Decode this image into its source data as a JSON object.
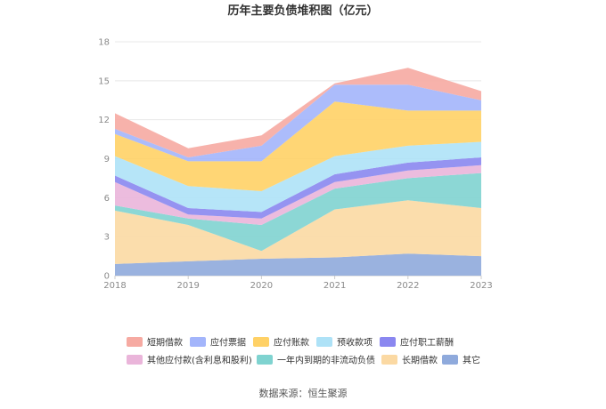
{
  "chart_data": {
    "type": "area",
    "title": "历年主要负债堆积图（亿元）",
    "source": "数据来源：恒生聚源",
    "x": [
      "2018",
      "2019",
      "2020",
      "2021",
      "2022",
      "2023"
    ],
    "ylim": [
      0,
      18
    ],
    "yticks": [
      "0",
      "3",
      "6",
      "9",
      "12",
      "15",
      "18"
    ],
    "grid": true,
    "stacked": true,
    "legend_position": "bottom",
    "series": [
      {
        "name": "其它",
        "color": "#8faadc",
        "values": [
          0.9,
          1.1,
          1.3,
          1.4,
          1.7,
          1.5
        ]
      },
      {
        "name": "长期借款",
        "color": "#fbd9a3",
        "values": [
          4.1,
          2.8,
          0.6,
          3.7,
          4.1,
          3.7
        ]
      },
      {
        "name": "一年内到期的非流动负债",
        "color": "#7fd3d0",
        "values": [
          0.4,
          0.5,
          2.0,
          1.6,
          1.7,
          2.7
        ]
      },
      {
        "name": "其他应付款(含利息和股利)",
        "color": "#eab5da",
        "values": [
          1.8,
          0.3,
          0.5,
          0.5,
          0.6,
          0.6
        ]
      },
      {
        "name": "应付职工薪酬",
        "color": "#8a87f0",
        "values": [
          0.5,
          0.5,
          0.5,
          0.6,
          0.6,
          0.6
        ]
      },
      {
        "name": "预收款项",
        "color": "#aee2f7",
        "values": [
          1.5,
          1.7,
          1.6,
          1.4,
          1.3,
          1.2
        ]
      },
      {
        "name": "应付账款",
        "color": "#ffd166",
        "values": [
          1.7,
          1.9,
          2.3,
          4.2,
          2.7,
          2.4
        ]
      },
      {
        "name": "应付票据",
        "color": "#a3b5fb",
        "values": [
          0.4,
          0.3,
          1.2,
          1.3,
          2.0,
          0.8
        ]
      },
      {
        "name": "短期借款",
        "color": "#f6aaa2",
        "values": [
          1.2,
          0.7,
          0.8,
          0.1,
          1.3,
          0.7
        ]
      }
    ],
    "legend_order": [
      "短期借款",
      "应付票据",
      "应付账款",
      "预收款项",
      "应付职工薪酬",
      "其他应付款(含利息和股利)",
      "一年内到期的非流动负债",
      "长期借款",
      "其它"
    ]
  }
}
